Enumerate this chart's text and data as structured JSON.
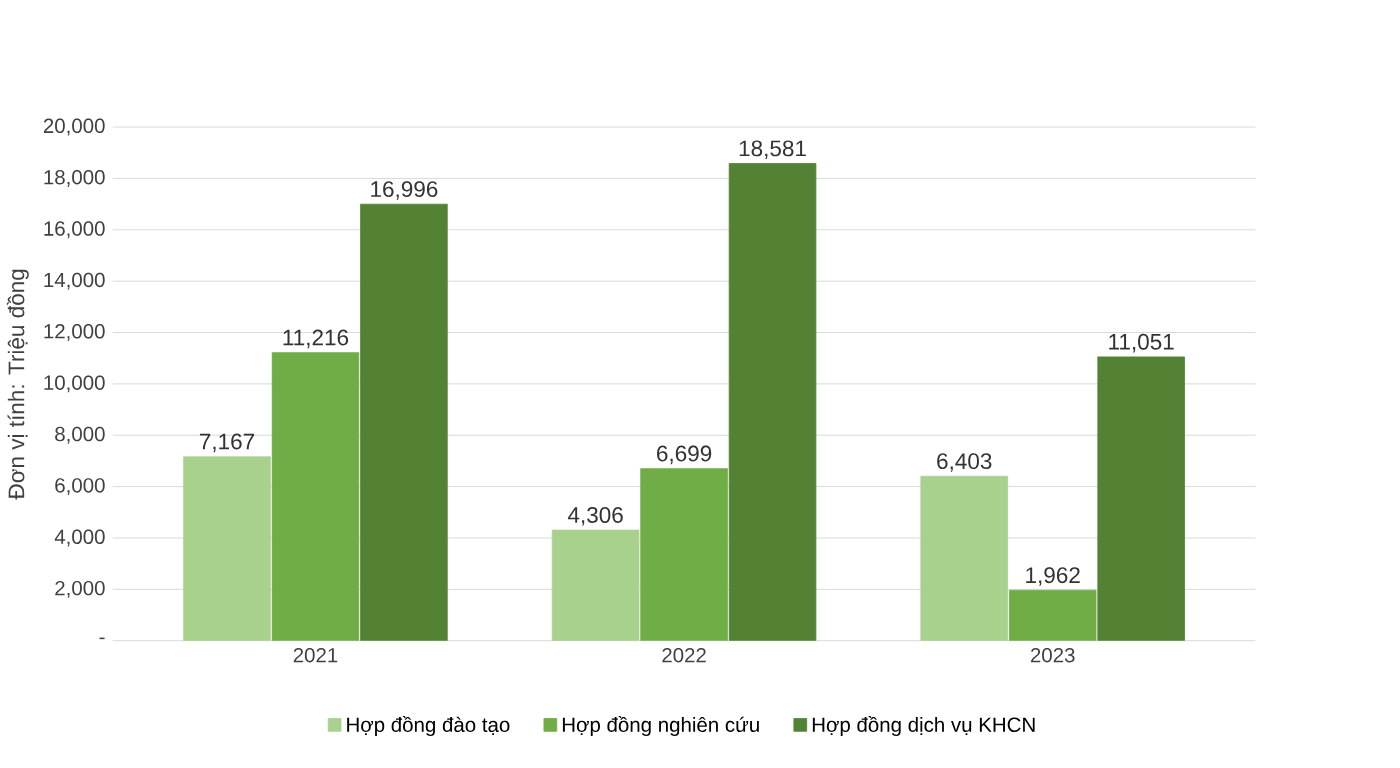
{
  "chart_data": {
    "type": "bar",
    "ylabel": "Đơn vị tính: Triệu đồng",
    "categories": [
      "2021",
      "2022",
      "2023"
    ],
    "series": [
      {
        "name": "Hợp đồng đào tạo",
        "color": "#a9d18e",
        "values": [
          7167,
          4306,
          6403
        ],
        "value_labels": [
          "7,167",
          "4,306",
          "6,403"
        ]
      },
      {
        "name": "Hợp đồng nghiên cứu",
        "color": "#70ad47",
        "values": [
          11216,
          6699,
          1962
        ],
        "value_labels": [
          "11,216",
          "6,699",
          "1,962"
        ]
      },
      {
        "name": "Hợp đồng dịch vụ KHCN",
        "color": "#548235",
        "values": [
          16996,
          18581,
          11051
        ],
        "value_labels": [
          "16,996",
          "18,581",
          "11,051"
        ]
      }
    ],
    "ylim": [
      0,
      20000
    ],
    "yticks": [
      {
        "value": 0,
        "label": "-"
      },
      {
        "value": 2000,
        "label": "2,000"
      },
      {
        "value": 4000,
        "label": "4,000"
      },
      {
        "value": 6000,
        "label": "6,000"
      },
      {
        "value": 8000,
        "label": "8,000"
      },
      {
        "value": 10000,
        "label": "10,000"
      },
      {
        "value": 12000,
        "label": "12,000"
      },
      {
        "value": 14000,
        "label": "14,000"
      },
      {
        "value": 16000,
        "label": "16,000"
      },
      {
        "value": 18000,
        "label": "18,000"
      },
      {
        "value": 20000,
        "label": "20,000"
      }
    ],
    "grid": "y",
    "legend": "bottom"
  }
}
